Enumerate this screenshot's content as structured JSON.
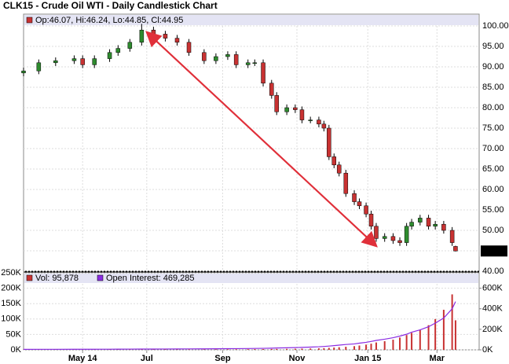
{
  "chart_data": [
    {
      "type": "candlestick",
      "title": "CLK15 - Crude Oil WTI - Daily Candlestick Chart",
      "legend": "Op:46.07, Hi:46.24, Lo:44.85, Cl:44.95",
      "up_color": "#2e8b2e",
      "down_color": "#c83232",
      "xlim": [
        0,
        270
      ],
      "x": [
        0,
        9,
        19,
        30,
        35,
        42,
        51,
        56,
        63,
        70,
        77,
        84,
        91,
        98,
        107,
        114,
        121,
        126,
        133,
        137,
        142,
        147,
        150,
        156,
        161,
        165,
        170,
        175,
        178,
        181,
        184,
        187,
        191,
        196,
        199,
        203,
        206,
        209,
        214,
        219,
        223,
        227,
        230,
        235,
        240,
        244,
        249,
        254,
        256
      ],
      "open": [
        88.5,
        89,
        91,
        91.5,
        92,
        90.5,
        92,
        93.5,
        94.5,
        96,
        99,
        98,
        97,
        96,
        93.5,
        91.5,
        92.5,
        93,
        90.5,
        91,
        91,
        86,
        83,
        79,
        80,
        79.5,
        77,
        77,
        76,
        75,
        68,
        66,
        64,
        59,
        57,
        56,
        54,
        51,
        48,
        48.5,
        47.5,
        47,
        51,
        52,
        53,
        51,
        51.5,
        50,
        46.07
      ],
      "high": [
        89.8,
        91.8,
        92.3,
        92.8,
        92.8,
        92.8,
        94.3,
        95.3,
        96.8,
        100.5,
        99.8,
        98.8,
        97.8,
        96.8,
        94.3,
        93.3,
        93.8,
        93.8,
        91.8,
        91.8,
        91.8,
        86.8,
        83.8,
        80.8,
        80.8,
        80.3,
        77.8,
        77.8,
        76.8,
        75.8,
        68.8,
        66.8,
        64.8,
        59.8,
        57.8,
        56.8,
        54.8,
        51.8,
        49.3,
        49.3,
        48.3,
        51.8,
        52.8,
        53.8,
        53.8,
        52.3,
        52.3,
        50.8,
        46.24
      ],
      "low": [
        87.7,
        88.2,
        90.2,
        90.7,
        89.7,
        89.7,
        91.2,
        92.7,
        93.7,
        95.2,
        97.2,
        96.2,
        95.2,
        92.7,
        90.7,
        90.7,
        91.7,
        89.7,
        89.7,
        90.2,
        85.2,
        82.2,
        78.2,
        78.2,
        78.7,
        76.2,
        76.2,
        75.2,
        74.2,
        67.2,
        65.2,
        63.2,
        58.2,
        56.2,
        55.2,
        53.2,
        50.2,
        47.2,
        47.2,
        46.7,
        46.2,
        46.2,
        50.2,
        51.2,
        50.2,
        50.2,
        49.2,
        46.2,
        44.85
      ],
      "close": [
        89,
        91,
        91.5,
        92,
        90.5,
        92,
        93.5,
        94.5,
        96,
        99,
        98,
        97,
        96,
        93.5,
        91.5,
        92.5,
        93,
        90.5,
        91,
        91,
        86,
        83,
        79,
        80,
        79.5,
        77,
        77,
        76,
        75,
        68,
        66,
        64,
        59,
        57,
        56,
        54,
        51,
        48,
        48.5,
        47.5,
        47,
        51,
        52,
        53,
        51,
        51.5,
        50,
        47,
        44.95
      ],
      "ylim": [
        40,
        100
      ],
      "yticks": [
        {
          "value": 40,
          "label": "40.00"
        },
        {
          "value": 45,
          "label": "45.00"
        },
        {
          "value": 50,
          "label": "50.00"
        },
        {
          "value": 55,
          "label": "55.00"
        },
        {
          "value": 60,
          "label": "60.00"
        },
        {
          "value": 65,
          "label": "65.00"
        },
        {
          "value": 70,
          "label": "70.00"
        },
        {
          "value": 75,
          "label": "75.00"
        },
        {
          "value": 80,
          "label": "80.00"
        },
        {
          "value": 85,
          "label": "85.00"
        },
        {
          "value": 90,
          "label": "90.00"
        },
        {
          "value": 95,
          "label": "95.00"
        },
        {
          "value": 100,
          "label": "100.00"
        }
      ],
      "grid": true
    },
    {
      "type": "bar",
      "xlim": [
        0,
        270
      ],
      "x": [
        0,
        9,
        19,
        30,
        35,
        42,
        51,
        56,
        63,
        70,
        77,
        84,
        91,
        98,
        107,
        114,
        121,
        126,
        133,
        137,
        142,
        147,
        150,
        156,
        161,
        165,
        170,
        175,
        178,
        181,
        184,
        187,
        191,
        196,
        199,
        203,
        206,
        209,
        214,
        219,
        223,
        227,
        230,
        235,
        240,
        244,
        249,
        254,
        256
      ],
      "xticks": [
        {
          "value": 35,
          "label": "May 14"
        },
        {
          "value": 73,
          "label": "Jul"
        },
        {
          "value": 118,
          "label": "Sep"
        },
        {
          "value": 162,
          "label": "Nov"
        },
        {
          "value": 204,
          "label": "Jan 15"
        },
        {
          "value": 245,
          "label": "Mar"
        }
      ],
      "series": [
        {
          "name": "Vol: 95,878",
          "color": "#c83232",
          "values": [
            800,
            900,
            900,
            1000,
            1000,
            1100,
            1100,
            1200,
            1200,
            1300,
            1400,
            1400,
            1500,
            1600,
            1700,
            1800,
            1900,
            2000,
            2200,
            2400,
            2600,
            2800,
            3000,
            3300,
            3600,
            4000,
            4500,
            5000,
            5500,
            6500,
            7500,
            8500,
            10000,
            12000,
            14000,
            17000,
            20000,
            24000,
            28000,
            33000,
            40000,
            48000,
            55000,
            65000,
            80000,
            100000,
            130000,
            180000,
            95878
          ]
        },
        {
          "name": "Open Interest: 469,285",
          "color": "#8a2be2",
          "axis": "y2",
          "values": [
            5000,
            5200,
            5400,
            5600,
            5800,
            6000,
            6300,
            6600,
            7000,
            7400,
            7800,
            8200,
            8700,
            9200,
            9800,
            10500,
            11200,
            12000,
            13000,
            14000,
            15000,
            16500,
            18000,
            20000,
            22000,
            24000,
            27000,
            30000,
            33000,
            37000,
            41000,
            46000,
            52000,
            58000,
            65000,
            73000,
            82000,
            92000,
            104000,
            118000,
            134000,
            152000,
            172000,
            195000,
            225000,
            260000,
            310000,
            400000,
            469285
          ]
        }
      ],
      "ylim": [
        0,
        250000
      ],
      "yticks": [
        {
          "value": 0,
          "label": "0K"
        },
        {
          "value": 50000,
          "label": "50K"
        },
        {
          "value": 100000,
          "label": "100K"
        },
        {
          "value": 150000,
          "label": "150K"
        },
        {
          "value": 200000,
          "label": "200K"
        },
        {
          "value": 250000,
          "label": "250K"
        }
      ],
      "y2lim": [
        0,
        750000
      ],
      "y2ticks": [
        {
          "value": 0,
          "label": "0K"
        },
        {
          "value": 200000,
          "label": "200K"
        },
        {
          "value": 400000,
          "label": "400K"
        },
        {
          "value": 600000,
          "label": "600K"
        }
      ],
      "grid": true
    }
  ]
}
